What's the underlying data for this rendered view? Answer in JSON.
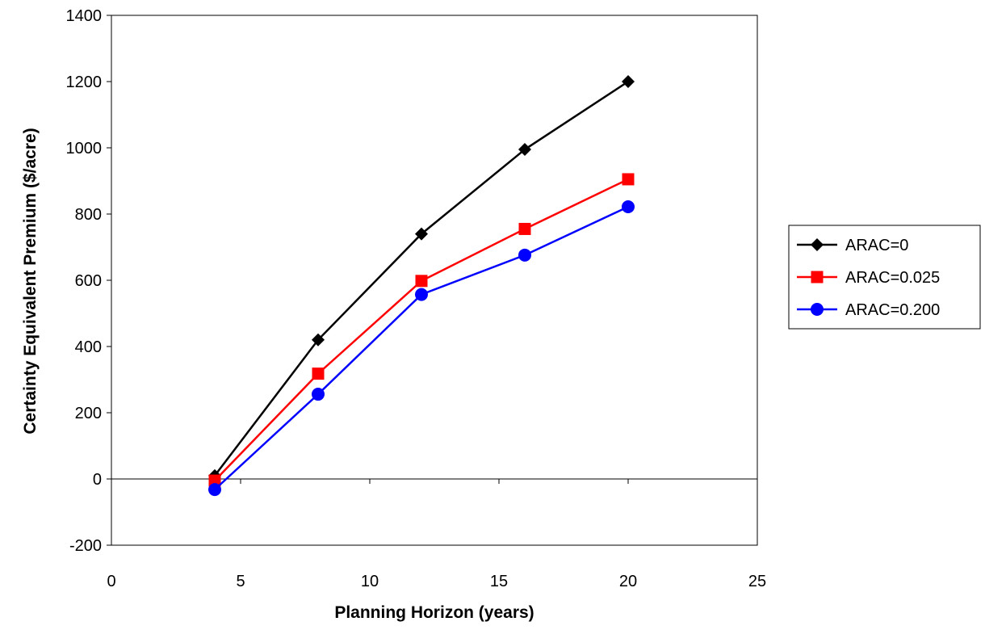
{
  "chart_data": {
    "type": "line",
    "title": "",
    "xlabel": "Planning Horizon (years)",
    "ylabel": "Certainty Equivalent Premium ($/acre)",
    "xlim": [
      0,
      25
    ],
    "ylim": [
      -200,
      1400
    ],
    "x_ticks": [
      0,
      5,
      10,
      15,
      20,
      25
    ],
    "y_ticks": [
      -200,
      0,
      200,
      400,
      600,
      800,
      1000,
      1200,
      1400
    ],
    "x_tick_labels": [
      "0",
      "5",
      "10",
      "15",
      "20",
      "25"
    ],
    "y_tick_labels": [
      "-200",
      "0",
      "200",
      "400",
      "600",
      "800",
      "1000",
      "1200",
      "1400"
    ],
    "grid": false,
    "legend_position": "right",
    "x": [
      4,
      8,
      12,
      16,
      20
    ],
    "series": [
      {
        "name": "ARAC=0",
        "values": [
          10,
          420,
          740,
          995,
          1200
        ],
        "color": "#000000",
        "marker": "diamond"
      },
      {
        "name": "ARAC=0.025",
        "values": [
          -5,
          318,
          598,
          755,
          905
        ],
        "color": "#ff0000",
        "marker": "square"
      },
      {
        "name": "ARAC=0.200",
        "values": [
          -32,
          256,
          557,
          676,
          822
        ],
        "color": "#0000ff",
        "marker": "circle"
      }
    ]
  }
}
